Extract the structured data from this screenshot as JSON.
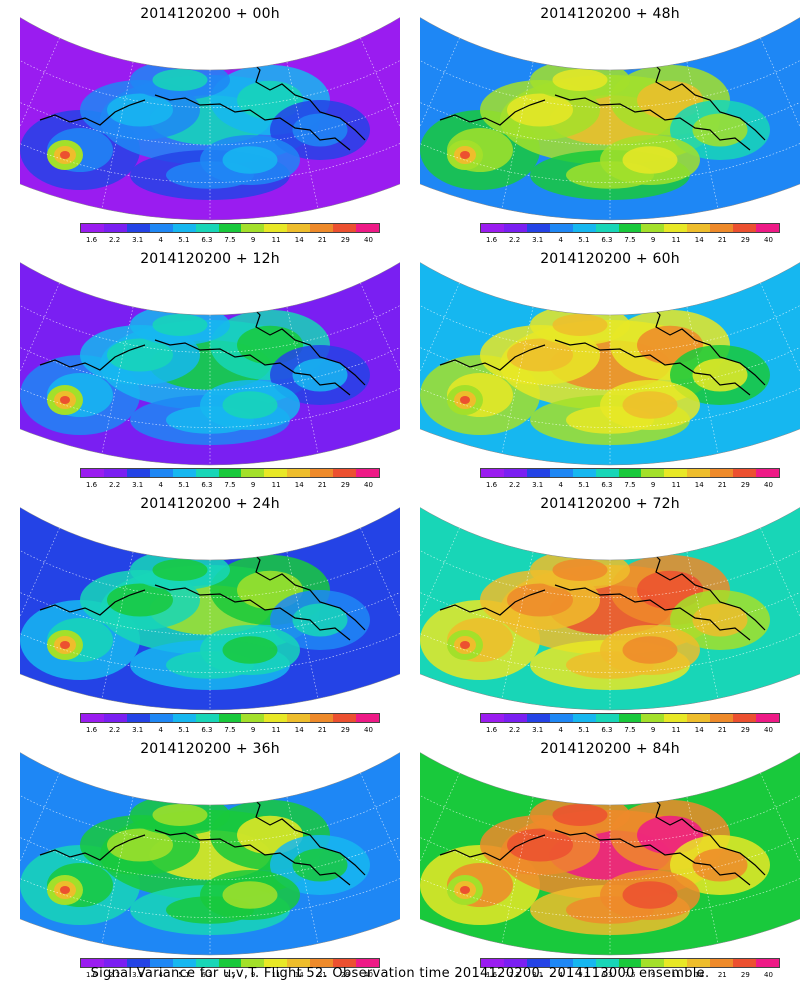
{
  "panels": [
    {
      "title": "2014120200 + 00h",
      "intensity": 0.05
    },
    {
      "title": "2014120200 + 48h",
      "intensity": 0.5
    },
    {
      "title": "2014120200 + 12h",
      "intensity": 0.15
    },
    {
      "title": "2014120200 + 60h",
      "intensity": 0.62
    },
    {
      "title": "2014120200 + 24h",
      "intensity": 0.28
    },
    {
      "title": "2014120200 + 72h",
      "intensity": 0.75
    },
    {
      "title": "2014120200 + 36h",
      "intensity": 0.38
    },
    {
      "title": "2014120200 + 84h",
      "intensity": 0.85
    }
  ],
  "colorbar": {
    "labels": [
      "1.6",
      "2.2",
      "3.1",
      "4",
      "5.1",
      "6.3",
      "7.5",
      "9",
      "11",
      "14",
      "21",
      "29",
      "40"
    ],
    "colors": [
      "#9a1cf0",
      "#7a1ff2",
      "#2443e6",
      "#1e87f5",
      "#16b7f0",
      "#18d6b7",
      "#19c93c",
      "#a3e02a",
      "#e8e826",
      "#eebd2c",
      "#ee8a2a",
      "#ec5030",
      "#ee1a86"
    ]
  },
  "caption": "Signal Variance for u,v,T. Flight 52. Observation time 2014120200. 2014113000 ensemble."
}
